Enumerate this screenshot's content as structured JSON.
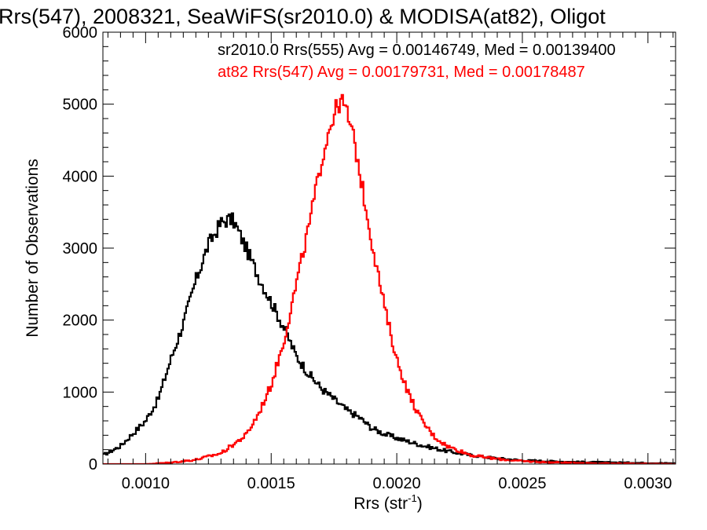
{
  "chart_data": {
    "type": "line",
    "title": "Rrs(547), 2008321, SeaWiFS(sr2010.0) & MODISA(at82), Oligot",
    "xlabel": "Rrs (str",
    "xlabel_sup": "-1",
    "xlabel_end": ")",
    "ylabel": "Number of Observations",
    "xlim": [
      0.00083,
      0.00311
    ],
    "ylim": [
      0,
      6000
    ],
    "x_ticks": [
      0.001,
      0.0015,
      0.002,
      0.0025,
      0.003
    ],
    "x_tick_labels": [
      "0.0010",
      "0.0015",
      "0.0020",
      "0.0025",
      "0.0030"
    ],
    "y_ticks": [
      0,
      1000,
      2000,
      3000,
      4000,
      5000,
      6000
    ],
    "y_tick_labels": [
      "0",
      "1000",
      "2000",
      "3000",
      "4000",
      "5000",
      "6000"
    ],
    "grid": false,
    "legend_position": "top-right",
    "legend": [
      "sr2010.0 Rrs(555) Avg = 0.00146749, Med = 0.00139400",
      "at82 Rrs(547) Avg = 0.00179731, Med = 0.00178487"
    ],
    "series": [
      {
        "color": "#000000",
        "x": [
          0.00083,
          0.0009,
          0.001,
          0.00105,
          0.0011,
          0.00115,
          0.0012,
          0.00125,
          0.0013,
          0.00133,
          0.00135,
          0.0014,
          0.00145,
          0.0015,
          0.00155,
          0.0016,
          0.00165,
          0.0017,
          0.00175,
          0.0018,
          0.00185,
          0.0019,
          0.00195,
          0.002,
          0.0021,
          0.0022,
          0.0023,
          0.0024,
          0.0025,
          0.0027,
          0.0029,
          0.00311
        ],
        "y": [
          120,
          250,
          600,
          900,
          1450,
          1950,
          2550,
          3050,
          3350,
          3400,
          3380,
          3000,
          2600,
          2250,
          1900,
          1500,
          1250,
          1050,
          900,
          750,
          650,
          500,
          420,
          360,
          260,
          180,
          120,
          80,
          50,
          30,
          20,
          10
        ]
      },
      {
        "color": "#ff0000",
        "x": [
          0.00083,
          0.001,
          0.0011,
          0.0012,
          0.0013,
          0.0014,
          0.00145,
          0.0015,
          0.00155,
          0.0016,
          0.00165,
          0.0017,
          0.00173,
          0.00176,
          0.00178,
          0.0018,
          0.00183,
          0.00186,
          0.0019,
          0.00195,
          0.002,
          0.00205,
          0.0021,
          0.00215,
          0.0022,
          0.0023,
          0.0024,
          0.0025,
          0.0026,
          0.0028,
          0.003,
          0.00311
        ],
        "y": [
          0,
          0,
          20,
          60,
          150,
          400,
          700,
          1100,
          1700,
          2500,
          3300,
          4200,
          4650,
          4950,
          5050,
          4900,
          4500,
          3900,
          3100,
          2200,
          1450,
          950,
          600,
          380,
          250,
          120,
          70,
          40,
          25,
          10,
          5,
          0
        ]
      }
    ]
  }
}
